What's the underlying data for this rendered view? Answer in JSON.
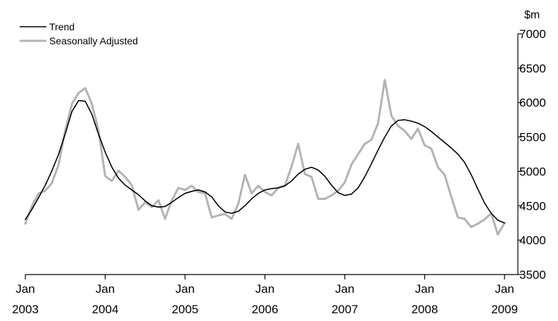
{
  "chart_data": {
    "type": "line",
    "unit": "$m",
    "ylim": [
      3500,
      7000
    ],
    "y_ticks": [
      "3500",
      "4000",
      "4500",
      "5000",
      "5500",
      "6000",
      "6500",
      "7000"
    ],
    "x_ticks": [
      {
        "month": "Jan",
        "year": "2003"
      },
      {
        "month": "Jan",
        "year": "2004"
      },
      {
        "month": "Jan",
        "year": "2005"
      },
      {
        "month": "Jan",
        "year": "2006"
      },
      {
        "month": "Jan",
        "year": "2007"
      },
      {
        "month": "Jan",
        "year": "2008"
      },
      {
        "month": "Jan",
        "year": "2009"
      }
    ],
    "x_start": "2003-01",
    "x_end": "2009-01",
    "legend_position": "top-left",
    "grid": false,
    "series": [
      {
        "name": "Trend",
        "color": "#000000",
        "values": [
          4300,
          4450,
          4620,
          4800,
          5010,
          5250,
          5550,
          5870,
          6030,
          6020,
          5830,
          5540,
          5280,
          5060,
          4900,
          4800,
          4730,
          4660,
          4570,
          4500,
          4480,
          4490,
          4550,
          4620,
          4680,
          4710,
          4730,
          4700,
          4630,
          4500,
          4410,
          4390,
          4420,
          4500,
          4600,
          4680,
          4730,
          4750,
          4760,
          4790,
          4860,
          4960,
          5030,
          5060,
          5020,
          4930,
          4800,
          4690,
          4650,
          4670,
          4760,
          4920,
          5110,
          5310,
          5500,
          5660,
          5740,
          5750,
          5730,
          5700,
          5650,
          5580,
          5500,
          5420,
          5340,
          5250,
          5130,
          4950,
          4740,
          4540,
          4390,
          4290,
          4250
        ]
      },
      {
        "name": "Seasonally Adjusted",
        "color": "#b3b3b3",
        "values": [
          4240,
          4500,
          4680,
          4720,
          4830,
          5100,
          5600,
          5980,
          6140,
          6210,
          5980,
          5600,
          4930,
          4860,
          5010,
          4920,
          4800,
          4440,
          4550,
          4480,
          4580,
          4310,
          4580,
          4760,
          4730,
          4790,
          4700,
          4680,
          4330,
          4360,
          4380,
          4310,
          4530,
          4950,
          4680,
          4790,
          4700,
          4650,
          4760,
          4790,
          5070,
          5400,
          4960,
          4920,
          4600,
          4600,
          4650,
          4720,
          4840,
          5100,
          5250,
          5400,
          5460,
          5700,
          6330,
          5810,
          5660,
          5590,
          5470,
          5620,
          5380,
          5330,
          5060,
          4950,
          4630,
          4330,
          4310,
          4190,
          4240,
          4300,
          4390,
          4080,
          4250
        ]
      }
    ]
  }
}
